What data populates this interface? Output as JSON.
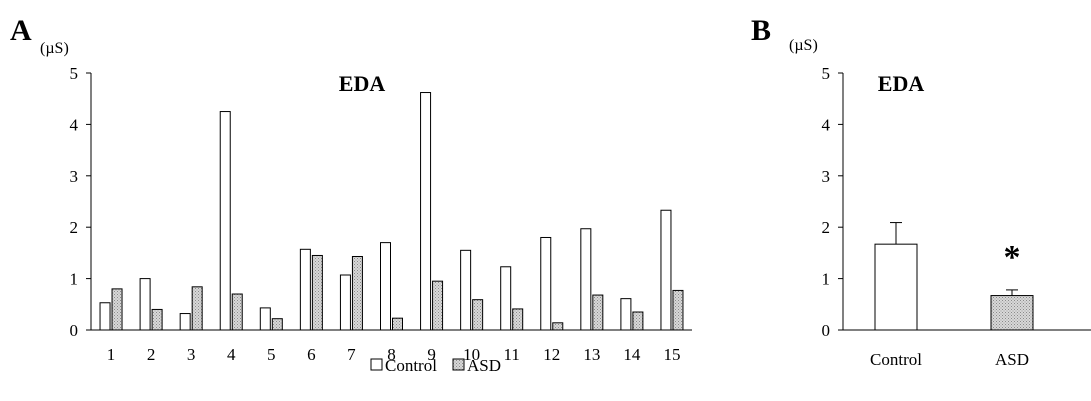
{
  "colors": {
    "control": "#ffffff",
    "asd": "#cfcfcf",
    "axis": "#000000"
  },
  "chart_data": [
    {
      "panel": "A",
      "type": "bar",
      "title": "EDA",
      "ylabel": "(µS)",
      "xlabel": "",
      "ylim": [
        0,
        5
      ],
      "yticks": [
        "0",
        "1",
        "2",
        "3",
        "4",
        "5"
      ],
      "categories": [
        "1",
        "2",
        "3",
        "4",
        "5",
        "6",
        "7",
        "8",
        "9",
        "10",
        "11",
        "12",
        "13",
        "14",
        "15"
      ],
      "series": [
        {
          "name": "Control",
          "values": [
            0.53,
            1.0,
            0.32,
            4.25,
            0.43,
            1.57,
            1.07,
            1.7,
            4.62,
            1.55,
            1.23,
            1.8,
            1.97,
            0.61,
            2.33
          ]
        },
        {
          "name": "ASD",
          "values": [
            0.8,
            0.4,
            0.84,
            0.7,
            0.22,
            1.45,
            1.43,
            0.23,
            0.95,
            0.59,
            0.41,
            0.14,
            0.68,
            0.35,
            0.77
          ]
        }
      ],
      "legend": [
        "Control",
        "ASD"
      ],
      "legend_position": "bottom-center",
      "grid": false
    },
    {
      "panel": "B",
      "type": "bar",
      "title": "EDA",
      "ylabel": "(µS)",
      "xlabel": "",
      "ylim": [
        0,
        5
      ],
      "yticks": [
        "0",
        "1",
        "2",
        "3",
        "4",
        "5"
      ],
      "categories": [
        "Control",
        "ASD"
      ],
      "values": [
        1.67,
        0.67
      ],
      "error": [
        0.42,
        0.11
      ],
      "annotations": [
        {
          "category": "ASD",
          "text": "*"
        }
      ],
      "grid": false
    }
  ]
}
